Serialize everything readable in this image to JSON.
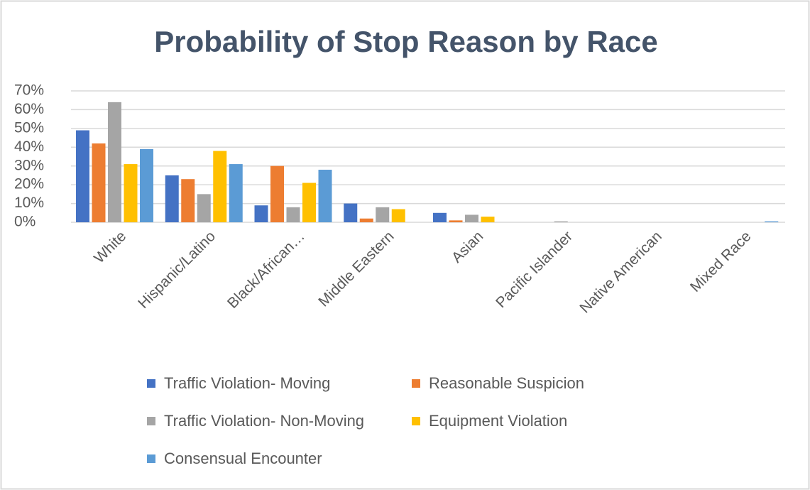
{
  "chart_data": {
    "type": "bar",
    "title": "Probability of Stop Reason by Race",
    "categories": [
      "White",
      "Hispanic/Latino",
      "Black/African…",
      "Middle Eastern",
      "Asian",
      "Pacific Islander",
      "Native American",
      "Mixed Race"
    ],
    "series": [
      {
        "name": "Traffic Violation- Moving",
        "color": "#4472c4",
        "values": [
          49,
          25,
          9,
          10,
          5,
          0,
          0,
          0
        ]
      },
      {
        "name": "Reasonable Suspicion",
        "color": "#ed7d31",
        "values": [
          42,
          23,
          30,
          2,
          1,
          0,
          0,
          0
        ]
      },
      {
        "name": "Traffic Violation- Non-Moving",
        "color": "#a5a5a5",
        "values": [
          64,
          15,
          8,
          8,
          4,
          0.5,
          0,
          0
        ]
      },
      {
        "name": "Equipment Violation",
        "color": "#ffc000",
        "values": [
          31,
          38,
          21,
          7,
          3,
          0,
          0,
          0
        ]
      },
      {
        "name": "Consensual Encounter",
        "color": "#5b9bd5",
        "values": [
          39,
          31,
          28,
          0,
          0,
          0,
          0,
          0.5
        ]
      }
    ],
    "ylim": [
      0,
      70
    ],
    "yticks": [
      {
        "value": 0,
        "label": "0%"
      },
      {
        "value": 10,
        "label": "10%"
      },
      {
        "value": 20,
        "label": "20%"
      },
      {
        "value": 30,
        "label": "30%"
      },
      {
        "value": 40,
        "label": "40%"
      },
      {
        "value": 50,
        "label": "50%"
      },
      {
        "value": 60,
        "label": "60%"
      },
      {
        "value": 70,
        "label": "70%"
      }
    ],
    "grid": true
  }
}
